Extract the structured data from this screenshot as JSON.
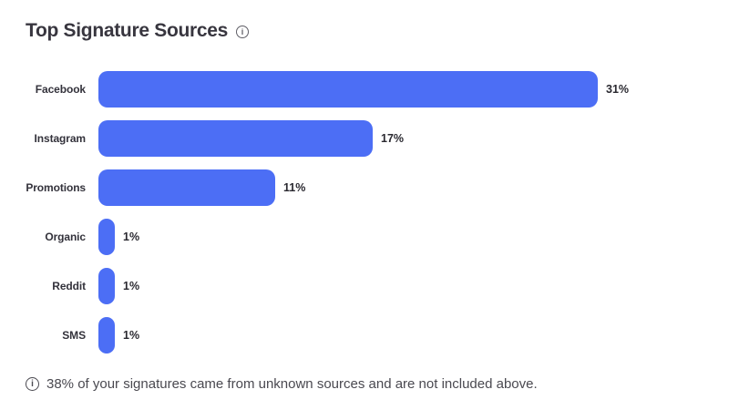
{
  "chart_data": {
    "type": "bar",
    "orientation": "horizontal",
    "title": "Top Signature Sources",
    "categories": [
      "Facebook",
      "Instagram",
      "Promotions",
      "Organic",
      "Reddit",
      "SMS"
    ],
    "values": [
      31,
      17,
      11,
      1,
      1,
      1
    ],
    "unit": "%",
    "xlim": [
      0,
      31
    ],
    "grid": false,
    "legend": false,
    "bar_color": "#4c6ef5",
    "footnote": "38% of your signatures came from unknown sources and are not included above."
  },
  "icons": {
    "glyph": "i"
  },
  "colors": {
    "bar": "#4c6ef5",
    "title_text": "#38363f",
    "category_label": "#33323b",
    "value_label": "#2a2930",
    "footnote_text": "#4a4950"
  }
}
